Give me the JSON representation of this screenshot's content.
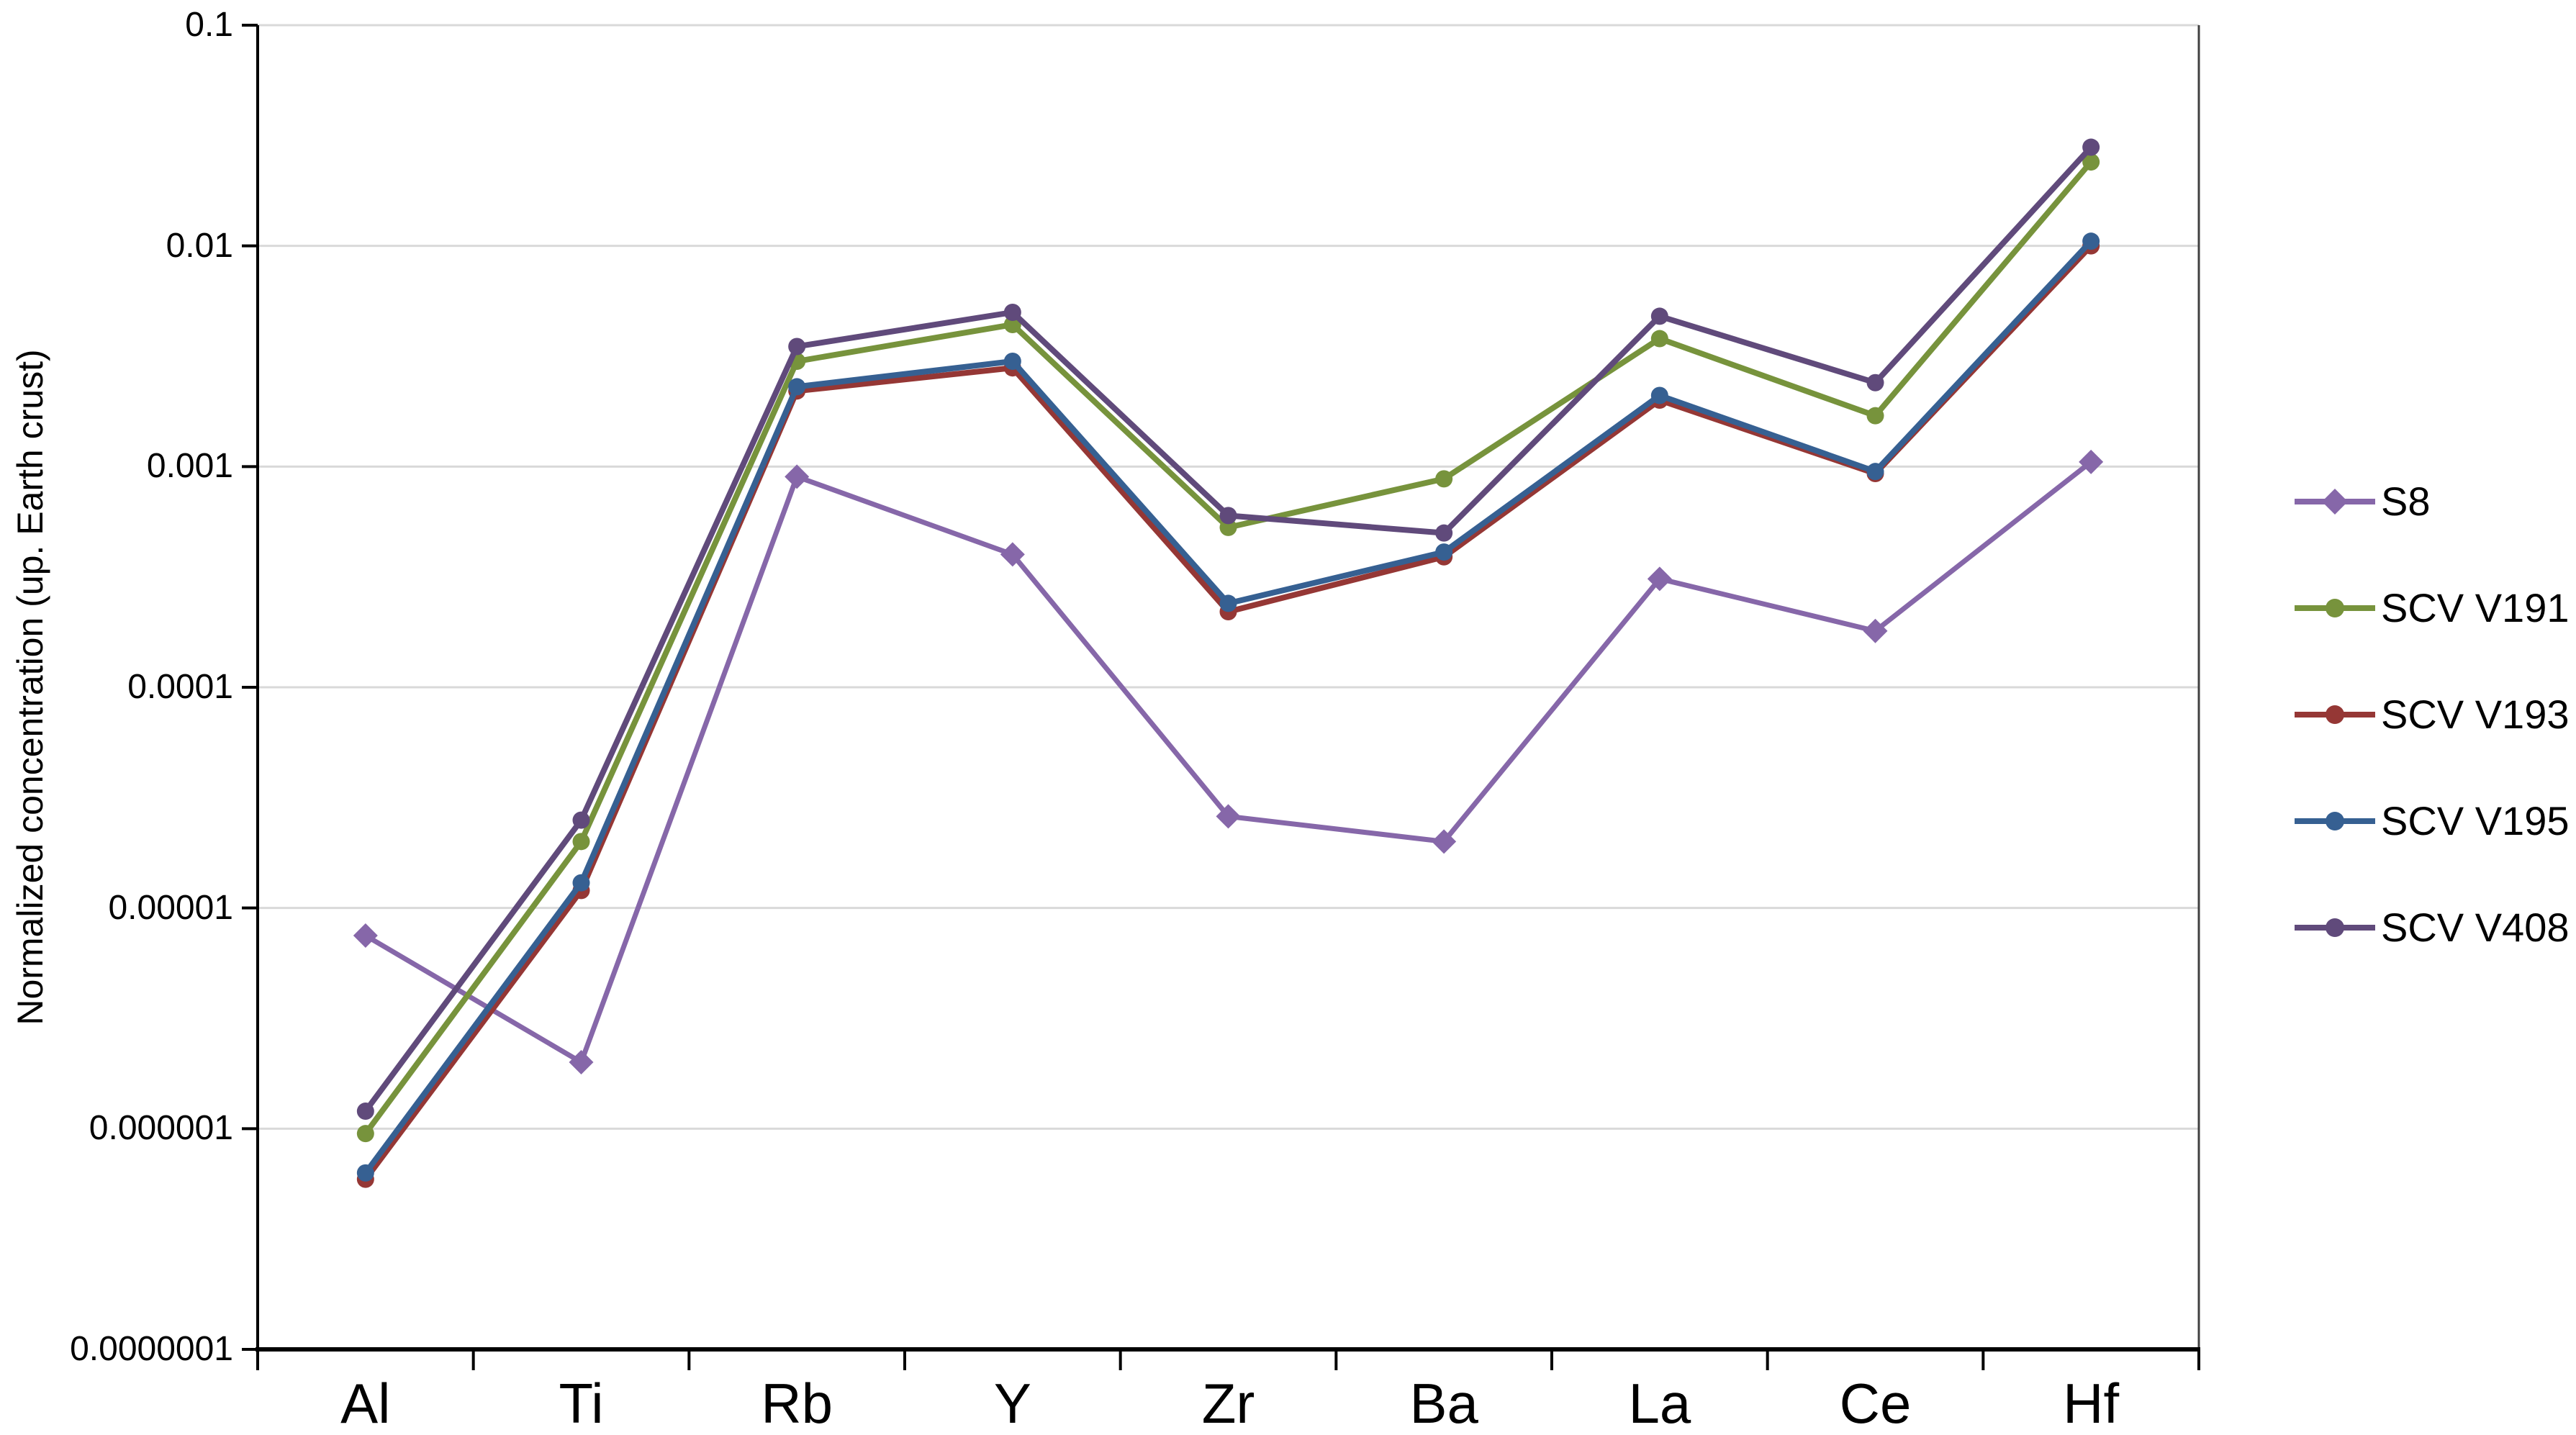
{
  "chart_data": {
    "type": "line",
    "title": "",
    "xlabel": "",
    "ylabel": "Normalized concentration (up. Earth crust)",
    "y_scale": "log",
    "ylim": [
      1e-07,
      0.1
    ],
    "grid": "horizontal",
    "legend_position": "right",
    "y_ticks": [
      "0.1",
      "0.01",
      "0.001",
      "0.0001",
      "0.00001",
      "0.000001",
      "0.0000001"
    ],
    "categories": [
      "Al",
      "Ti",
      "Rb",
      "Y",
      "Zr",
      "Ba",
      "La",
      "Ce",
      "Hf"
    ],
    "series": [
      {
        "name": "S8",
        "color": "#8667A9",
        "marker": "diamond",
        "values": [
          7.5e-06,
          2e-06,
          0.0009,
          0.0004,
          2.6e-05,
          2e-05,
          0.00031,
          0.00018,
          0.00105
        ]
      },
      {
        "name": "SCV V191",
        "color": "#77933C",
        "marker": "circle",
        "values": [
          9.5e-07,
          2e-05,
          0.003,
          0.0044,
          0.00053,
          0.00088,
          0.0038,
          0.0017,
          0.024
        ]
      },
      {
        "name": "SCV V193",
        "color": "#953735",
        "marker": "circle",
        "values": [
          5.9e-07,
          1.2e-05,
          0.0022,
          0.0028,
          0.00022,
          0.00039,
          0.002,
          0.00093,
          0.01
        ]
      },
      {
        "name": "SCV V195",
        "color": "#366092",
        "marker": "circle",
        "values": [
          6.3e-07,
          1.3e-05,
          0.0023,
          0.003,
          0.00024,
          0.00041,
          0.0021,
          0.00095,
          0.0105
        ]
      },
      {
        "name": "SCV V408",
        "color": "#604A7B",
        "marker": "circle",
        "values": [
          1.2e-06,
          2.5e-05,
          0.0035,
          0.005,
          0.0006,
          0.0005,
          0.0048,
          0.0024,
          0.028
        ]
      }
    ]
  }
}
